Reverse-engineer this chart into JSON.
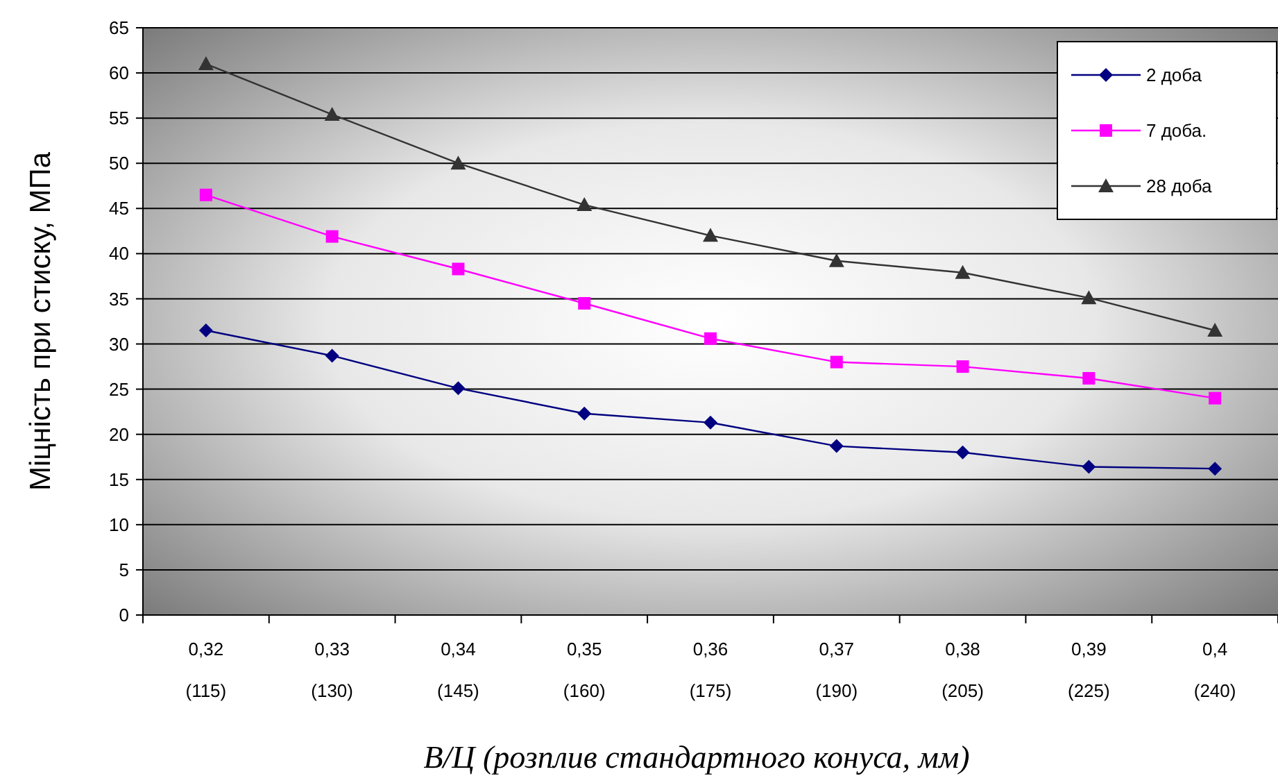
{
  "chart_data": {
    "type": "line",
    "xlabel": "В/Ц (розплив стандартного конуса, мм)",
    "ylabel": "Міцність при стиску, МПа",
    "categories": [
      "0,32\n(115)",
      "0,33\n(130)",
      "0,34\n(145)",
      "0,35\n(160)",
      "0,36\n(175)",
      "0,37\n(190)",
      "0,38\n(205)",
      "0,39\n(225)",
      "0,4\n(240)"
    ],
    "series": [
      {
        "name": "2 доба",
        "color": "#000080",
        "marker": "diamond",
        "values": [
          31.5,
          28.7,
          25.1,
          22.3,
          21.3,
          18.7,
          18.0,
          16.4,
          16.2
        ]
      },
      {
        "name": "7 доба.",
        "color": "#ff00ff",
        "marker": "square",
        "values": [
          46.5,
          41.9,
          38.3,
          34.5,
          30.6,
          28.0,
          27.5,
          26.2,
          24.0
        ]
      },
      {
        "name": "28 доба",
        "color": "#333333",
        "marker": "triangle",
        "values": [
          61.0,
          55.4,
          50.0,
          45.4,
          42.0,
          39.2,
          37.9,
          35.1,
          31.5
        ]
      }
    ],
    "ylim": [
      0,
      65
    ],
    "yticks": [
      0,
      5,
      10,
      15,
      20,
      25,
      30,
      35,
      40,
      45,
      50,
      55,
      60,
      65
    ],
    "grid": "y",
    "legend": "top right"
  }
}
